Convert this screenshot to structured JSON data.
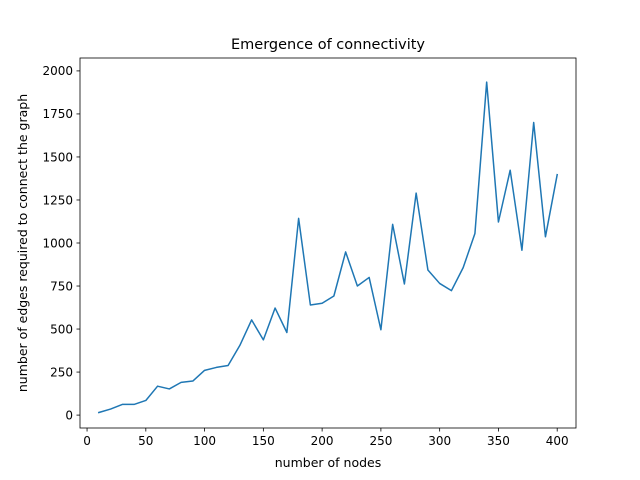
{
  "chart_data": {
    "type": "line",
    "title": "Emergence of connectivity",
    "xlabel": "number of nodes",
    "ylabel": "number of edges required to connect the graph",
    "xlim": [
      -6,
      416
    ],
    "ylim": [
      -75,
      2075
    ],
    "xticks": [
      0,
      50,
      100,
      150,
      200,
      250,
      300,
      350,
      400
    ],
    "yticks": [
      0,
      250,
      500,
      750,
      1000,
      1250,
      1500,
      1750,
      2000
    ],
    "grid": false,
    "line_color": "#1f77b4",
    "series": [
      {
        "x": [
          10,
          20,
          30,
          40,
          50,
          60,
          70,
          80,
          90,
          100,
          110,
          120,
          130,
          140,
          150,
          160,
          170,
          180,
          190,
          200,
          210,
          220,
          230,
          240,
          250,
          260,
          270,
          280,
          290,
          300,
          310,
          320,
          330,
          340,
          350,
          360,
          370,
          380,
          390,
          400
        ],
        "y": [
          15,
          35,
          62,
          62,
          85,
          168,
          152,
          190,
          198,
          260,
          277,
          288,
          405,
          553,
          437,
          622,
          480,
          1143,
          640,
          650,
          692,
          948,
          750,
          800,
          496,
          1108,
          762,
          1290,
          843,
          765,
          723,
          857,
          1055,
          1935,
          1122,
          1423,
          958,
          1700,
          1036,
          1397
        ]
      }
    ]
  }
}
